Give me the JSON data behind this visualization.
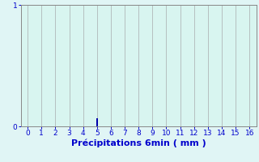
{
  "title": "",
  "xlabel": "Précipitations 6min ( mm )",
  "ylabel": "",
  "background_color": "#e0f5f5",
  "plot_bg_color": "#d8f5f0",
  "grid_color": "#b0b8b8",
  "bar_color": "#0000aa",
  "xlim": [
    -0.5,
    16.5
  ],
  "ylim": [
    0,
    1.0
  ],
  "xticks": [
    0,
    1,
    2,
    3,
    4,
    5,
    6,
    7,
    8,
    9,
    10,
    11,
    12,
    13,
    14,
    15,
    16
  ],
  "yticks": [
    0,
    1
  ],
  "bar_x": [
    5
  ],
  "bar_height": [
    0.07
  ],
  "bar_width": 0.15,
  "tick_color": "#0000cc",
  "label_color": "#0000cc",
  "tick_fontsize": 6.5,
  "label_fontsize": 8,
  "spine_color": "#888888"
}
